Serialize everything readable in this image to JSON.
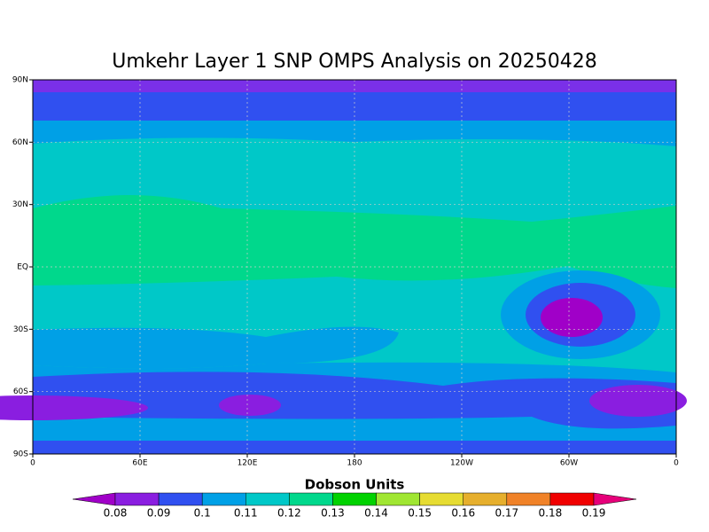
{
  "title": "Umkehr Layer 1 SNP OMPS Analysis on 20250428",
  "map": {
    "lat_ticks": [
      {
        "value": 90,
        "label": "90N"
      },
      {
        "value": 60,
        "label": "60N"
      },
      {
        "value": 30,
        "label": "30N"
      },
      {
        "value": 0,
        "label": "EQ"
      },
      {
        "value": -30,
        "label": "30S"
      },
      {
        "value": -60,
        "label": "60S"
      },
      {
        "value": -90,
        "label": "90S"
      }
    ],
    "lon_ticks": [
      {
        "value": 0,
        "label": "0"
      },
      {
        "value": 60,
        "label": "60E"
      },
      {
        "value": 120,
        "label": "120E"
      },
      {
        "value": 180,
        "label": "180"
      },
      {
        "value": 240,
        "label": "120W"
      },
      {
        "value": 300,
        "label": "60W"
      },
      {
        "value": 360,
        "label": "0"
      }
    ]
  },
  "colorbar": {
    "title": "Dobson Units",
    "levels": [
      0.08,
      0.09,
      0.1,
      0.11,
      0.12,
      0.13,
      0.14,
      0.15,
      0.16,
      0.17,
      0.18,
      0.19
    ],
    "colors": [
      "#a000c8",
      "#8a1ee0",
      "#3050f0",
      "#00a0e6",
      "#00c8c8",
      "#00d88c",
      "#00d200",
      "#a0e632",
      "#e6dc32",
      "#e6af2d",
      "#f08228",
      "#f00000",
      "#e6007a"
    ]
  }
}
